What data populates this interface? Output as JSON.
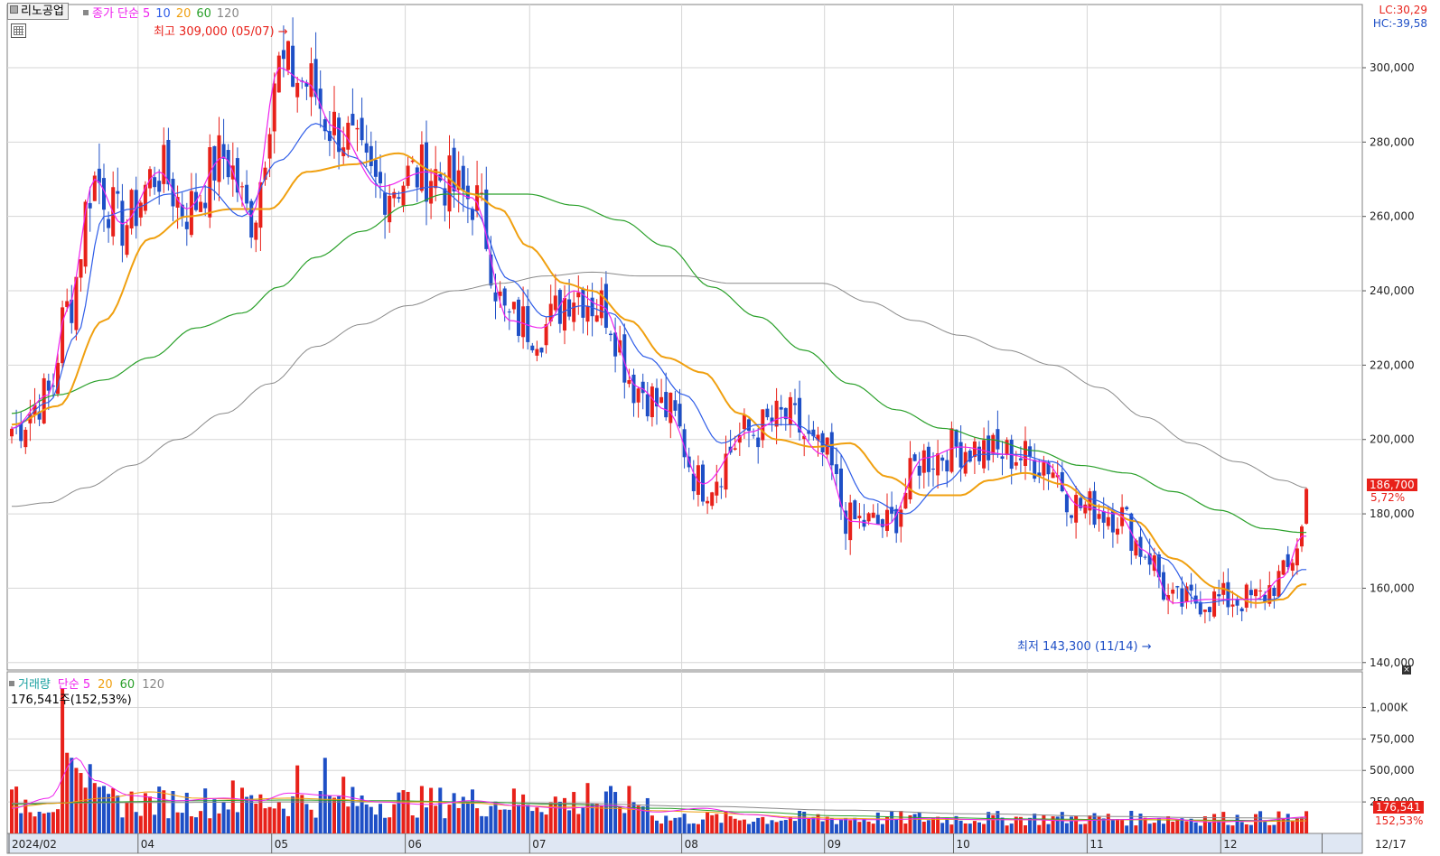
{
  "header": {
    "stock_name": "리노공업",
    "price_legend": {
      "label": "종가 단순",
      "periods": [
        "5",
        "10",
        "20",
        "60",
        "120"
      ]
    },
    "lc": "LC:30,29",
    "hc": "HC:-39,58"
  },
  "annotations": {
    "high": "최고 309,000 (05/07)",
    "low": "최저 143,300 (11/14)"
  },
  "price_badge": {
    "value": "186,700",
    "change_pct": "5,72%"
  },
  "volume_panel": {
    "legend_title": "거래량",
    "legend_label": "단순",
    "periods": [
      "5",
      "20",
      "60",
      "120"
    ],
    "current": "176,541주(152,53%)",
    "badge_value": "176,541",
    "badge_pct": "152,53%"
  },
  "colors": {
    "up": "#e8211a",
    "down": "#1e4fc6",
    "ma5": "#ee22ee",
    "ma10": "#2f5de8",
    "ma20": "#f0a010",
    "ma60": "#2aa02a",
    "ma120": "#8a8a8a",
    "grid": "#d6d6d6"
  },
  "chart_data": {
    "type": "candlestick",
    "price_axis": {
      "ticks": [
        "300,000",
        "280,000",
        "260,000",
        "240,000",
        "220,000",
        "200,000",
        "180,000",
        "160,000",
        "140,000"
      ],
      "tick_values": [
        300000,
        280000,
        260000,
        240000,
        220000,
        200000,
        180000,
        160000,
        140000
      ],
      "range": [
        138000,
        317000
      ]
    },
    "volume_axis": {
      "ticks": [
        "1,000K",
        "750,000",
        "500,000",
        "250,000"
      ],
      "tick_values": [
        1000000,
        750000,
        500000,
        250000
      ],
      "range": [
        0,
        1240000
      ]
    },
    "x_axis": {
      "labels": [
        "2024/02",
        "04",
        "05",
        "06",
        "07",
        "08",
        "09",
        "10",
        "11",
        "12",
        "12/17"
      ],
      "label_index": [
        0,
        28,
        57,
        86,
        113,
        146,
        177,
        205,
        234,
        263,
        285
      ]
    },
    "ma_anchors": {
      "ma5": [
        [
          0,
          203000
        ],
        [
          8,
          212000
        ],
        [
          12,
          235000
        ],
        [
          18,
          270000
        ],
        [
          24,
          258000
        ],
        [
          32,
          272000
        ],
        [
          38,
          262000
        ],
        [
          46,
          276000
        ],
        [
          52,
          260000
        ],
        [
          58,
          300000
        ],
        [
          64,
          296000
        ],
        [
          70,
          284000
        ],
        [
          80,
          268000
        ],
        [
          90,
          272000
        ],
        [
          100,
          265000
        ],
        [
          108,
          232000
        ],
        [
          115,
          230000
        ],
        [
          122,
          240000
        ],
        [
          128,
          236000
        ],
        [
          136,
          214000
        ],
        [
          142,
          208000
        ],
        [
          150,
          188000
        ],
        [
          160,
          202000
        ],
        [
          168,
          206000
        ],
        [
          176,
          196000
        ],
        [
          182,
          178000
        ],
        [
          190,
          177000
        ],
        [
          198,
          195000
        ],
        [
          206,
          198000
        ],
        [
          216,
          196000
        ],
        [
          224,
          194000
        ],
        [
          232,
          182000
        ],
        [
          240,
          180000
        ],
        [
          246,
          170000
        ],
        [
          252,
          156000
        ],
        [
          260,
          157000
        ],
        [
          270,
          157000
        ],
        [
          276,
          163000
        ],
        [
          280,
          174000
        ]
      ],
      "ma10": [
        [
          0,
          203000
        ],
        [
          8,
          210000
        ],
        [
          14,
          228000
        ],
        [
          20,
          260000
        ],
        [
          26,
          262000
        ],
        [
          34,
          266000
        ],
        [
          42,
          268000
        ],
        [
          50,
          260000
        ],
        [
          58,
          275000
        ],
        [
          66,
          285000
        ],
        [
          74,
          276000
        ],
        [
          82,
          266000
        ],
        [
          92,
          268000
        ],
        [
          100,
          262000
        ],
        [
          108,
          243000
        ],
        [
          116,
          233000
        ],
        [
          124,
          236000
        ],
        [
          130,
          234000
        ],
        [
          138,
          222000
        ],
        [
          146,
          212000
        ],
        [
          154,
          199000
        ],
        [
          162,
          204000
        ],
        [
          170,
          204000
        ],
        [
          178,
          198000
        ],
        [
          186,
          184000
        ],
        [
          194,
          180000
        ],
        [
          202,
          188000
        ],
        [
          210,
          196000
        ],
        [
          218,
          196000
        ],
        [
          226,
          194000
        ],
        [
          234,
          184000
        ],
        [
          242,
          180000
        ],
        [
          250,
          168000
        ],
        [
          258,
          156000
        ],
        [
          266,
          157000
        ],
        [
          274,
          157000
        ],
        [
          280,
          165000
        ]
      ],
      "ma20": [
        [
          0,
          204000
        ],
        [
          10,
          209000
        ],
        [
          20,
          232000
        ],
        [
          30,
          254000
        ],
        [
          38,
          260000
        ],
        [
          48,
          262000
        ],
        [
          56,
          262000
        ],
        [
          64,
          272000
        ],
        [
          74,
          274000
        ],
        [
          84,
          277000
        ],
        [
          92,
          272000
        ],
        [
          100,
          266000
        ],
        [
          106,
          262000
        ],
        [
          112,
          252000
        ],
        [
          120,
          242000
        ],
        [
          126,
          240000
        ],
        [
          134,
          232000
        ],
        [
          142,
          222000
        ],
        [
          150,
          218000
        ],
        [
          158,
          207000
        ],
        [
          166,
          200000
        ],
        [
          174,
          198000
        ],
        [
          182,
          199000
        ],
        [
          190,
          190000
        ],
        [
          198,
          185000
        ],
        [
          206,
          185000
        ],
        [
          212,
          189000
        ],
        [
          220,
          191000
        ],
        [
          228,
          188000
        ],
        [
          236,
          182000
        ],
        [
          244,
          178000
        ],
        [
          252,
          168000
        ],
        [
          262,
          160000
        ],
        [
          270,
          156000
        ],
        [
          276,
          157000
        ],
        [
          280,
          161000
        ]
      ],
      "ma60": [
        [
          0,
          207000
        ],
        [
          10,
          212000
        ],
        [
          20,
          216000
        ],
        [
          30,
          222000
        ],
        [
          40,
          230000
        ],
        [
          50,
          234000
        ],
        [
          58,
          241000
        ],
        [
          66,
          249000
        ],
        [
          76,
          256000
        ],
        [
          86,
          263000
        ],
        [
          94,
          266000
        ],
        [
          104,
          266000
        ],
        [
          112,
          266000
        ],
        [
          122,
          263000
        ],
        [
          132,
          259000
        ],
        [
          142,
          252000
        ],
        [
          152,
          241000
        ],
        [
          162,
          233000
        ],
        [
          172,
          224000
        ],
        [
          182,
          215000
        ],
        [
          192,
          208000
        ],
        [
          202,
          203000
        ],
        [
          212,
          200000
        ],
        [
          222,
          197000
        ],
        [
          232,
          193000
        ],
        [
          242,
          191000
        ],
        [
          252,
          186000
        ],
        [
          262,
          181000
        ],
        [
          272,
          176000
        ],
        [
          280,
          175000
        ]
      ],
      "ma120": [
        [
          0,
          182000
        ],
        [
          8,
          183000
        ],
        [
          16,
          187000
        ],
        [
          26,
          193000
        ],
        [
          36,
          200000
        ],
        [
          46,
          207000
        ],
        [
          56,
          215000
        ],
        [
          66,
          225000
        ],
        [
          76,
          231000
        ],
        [
          86,
          236000
        ],
        [
          96,
          240000
        ],
        [
          106,
          242000
        ],
        [
          116,
          244000
        ],
        [
          126,
          245000
        ],
        [
          136,
          244000
        ],
        [
          146,
          244000
        ],
        [
          156,
          242000
        ],
        [
          166,
          242000
        ],
        [
          176,
          242000
        ],
        [
          186,
          237000
        ],
        [
          196,
          232000
        ],
        [
          206,
          228000
        ],
        [
          216,
          224000
        ],
        [
          226,
          220000
        ],
        [
          236,
          214000
        ],
        [
          246,
          206000
        ],
        [
          256,
          199000
        ],
        [
          266,
          194000
        ],
        [
          276,
          189000
        ],
        [
          281,
          187000
        ]
      ]
    },
    "vma_anchors": {
      "vma5": [
        [
          0,
          200000
        ],
        [
          8,
          280000
        ],
        [
          14,
          600000
        ],
        [
          18,
          420000
        ],
        [
          26,
          300000
        ],
        [
          36,
          260000
        ],
        [
          46,
          280000
        ],
        [
          54,
          260000
        ],
        [
          60,
          320000
        ],
        [
          70,
          300000
        ],
        [
          80,
          250000
        ],
        [
          90,
          230000
        ],
        [
          100,
          260000
        ],
        [
          110,
          220000
        ],
        [
          120,
          200000
        ],
        [
          130,
          220000
        ],
        [
          140,
          170000
        ],
        [
          150,
          200000
        ],
        [
          160,
          150000
        ],
        [
          170,
          120000
        ],
        [
          180,
          110000
        ],
        [
          190,
          110000
        ],
        [
          200,
          120000
        ],
        [
          210,
          110000
        ],
        [
          220,
          110000
        ],
        [
          230,
          100000
        ],
        [
          240,
          110000
        ],
        [
          250,
          120000
        ],
        [
          260,
          90000
        ],
        [
          270,
          100000
        ],
        [
          281,
          130000
        ]
      ],
      "vma20": [
        [
          0,
          210000
        ],
        [
          10,
          240000
        ],
        [
          20,
          280000
        ],
        [
          30,
          330000
        ],
        [
          40,
          280000
        ],
        [
          50,
          270000
        ],
        [
          60,
          280000
        ],
        [
          70,
          270000
        ],
        [
          80,
          250000
        ],
        [
          90,
          250000
        ],
        [
          100,
          240000
        ],
        [
          110,
          220000
        ],
        [
          120,
          210000
        ],
        [
          130,
          200000
        ],
        [
          140,
          180000
        ],
        [
          150,
          170000
        ],
        [
          160,
          150000
        ],
        [
          170,
          130000
        ],
        [
          180,
          120000
        ],
        [
          190,
          115000
        ],
        [
          200,
          112000
        ],
        [
          210,
          110000
        ],
        [
          220,
          108000
        ],
        [
          230,
          105000
        ],
        [
          240,
          108000
        ],
        [
          250,
          110000
        ],
        [
          260,
          100000
        ],
        [
          270,
          95000
        ],
        [
          281,
          100000
        ]
      ],
      "vma60": [
        [
          0,
          230000
        ],
        [
          20,
          250000
        ],
        [
          40,
          260000
        ],
        [
          60,
          265000
        ],
        [
          80,
          260000
        ],
        [
          100,
          250000
        ],
        [
          120,
          230000
        ],
        [
          140,
          200000
        ],
        [
          160,
          170000
        ],
        [
          180,
          140000
        ],
        [
          200,
          125000
        ],
        [
          220,
          115000
        ],
        [
          240,
          110000
        ],
        [
          260,
          105000
        ],
        [
          281,
          100000
        ]
      ],
      "vma120": [
        [
          0,
          240000
        ],
        [
          30,
          245000
        ],
        [
          60,
          250000
        ],
        [
          90,
          250000
        ],
        [
          120,
          240000
        ],
        [
          150,
          215000
        ],
        [
          180,
          185000
        ],
        [
          210,
          155000
        ],
        [
          240,
          135000
        ],
        [
          260,
          125000
        ],
        [
          281,
          120000
        ]
      ]
    }
  }
}
